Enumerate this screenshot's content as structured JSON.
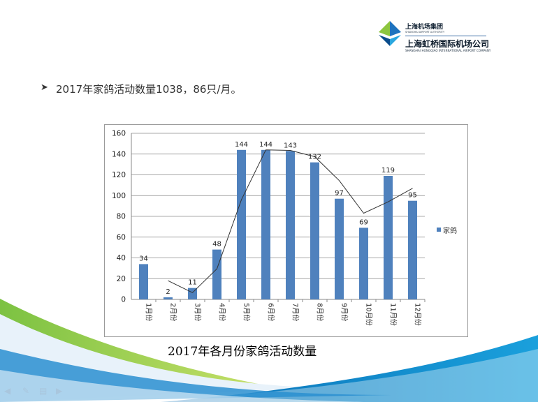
{
  "logo": {
    "group_cn": "上海机场集团",
    "group_en": "SHANGHAI AIRPORT AUTHORITY",
    "company_cn": "上海虹桥国际机场公司",
    "company_en": "SHANGHAI HONGQIAO INTERNATIONAL AIRPORT COMPANY"
  },
  "bullet": {
    "marker": "➤",
    "text": "2017年家鸽活动数量1038，86只/月。"
  },
  "chart_data": {
    "type": "bar",
    "title": "2017年各月份家鸽活动数量",
    "categories": [
      "1月份",
      "2月份",
      "3月份",
      "4月份",
      "5月份",
      "6月份",
      "7月份",
      "8月份",
      "9月份",
      "10月份",
      "11月份",
      "12月份"
    ],
    "series": [
      {
        "name": "家鸽",
        "values": [
          34,
          2,
          11,
          48,
          144,
          144,
          143,
          132,
          97,
          69,
          119,
          95
        ]
      }
    ],
    "trendline": {
      "type": "moving-average",
      "period": 2
    },
    "ylim": [
      0,
      160
    ],
    "yticks": [
      0,
      20,
      40,
      60,
      80,
      100,
      120,
      140,
      160
    ],
    "grid": true,
    "legend": "right",
    "colors": {
      "bar": "#4f81bd",
      "trend": "#333333",
      "grid": "#8c8c8c"
    }
  },
  "toolbar": {
    "icons": [
      "back-icon",
      "pen-icon",
      "menu-icon",
      "forward-icon"
    ]
  }
}
